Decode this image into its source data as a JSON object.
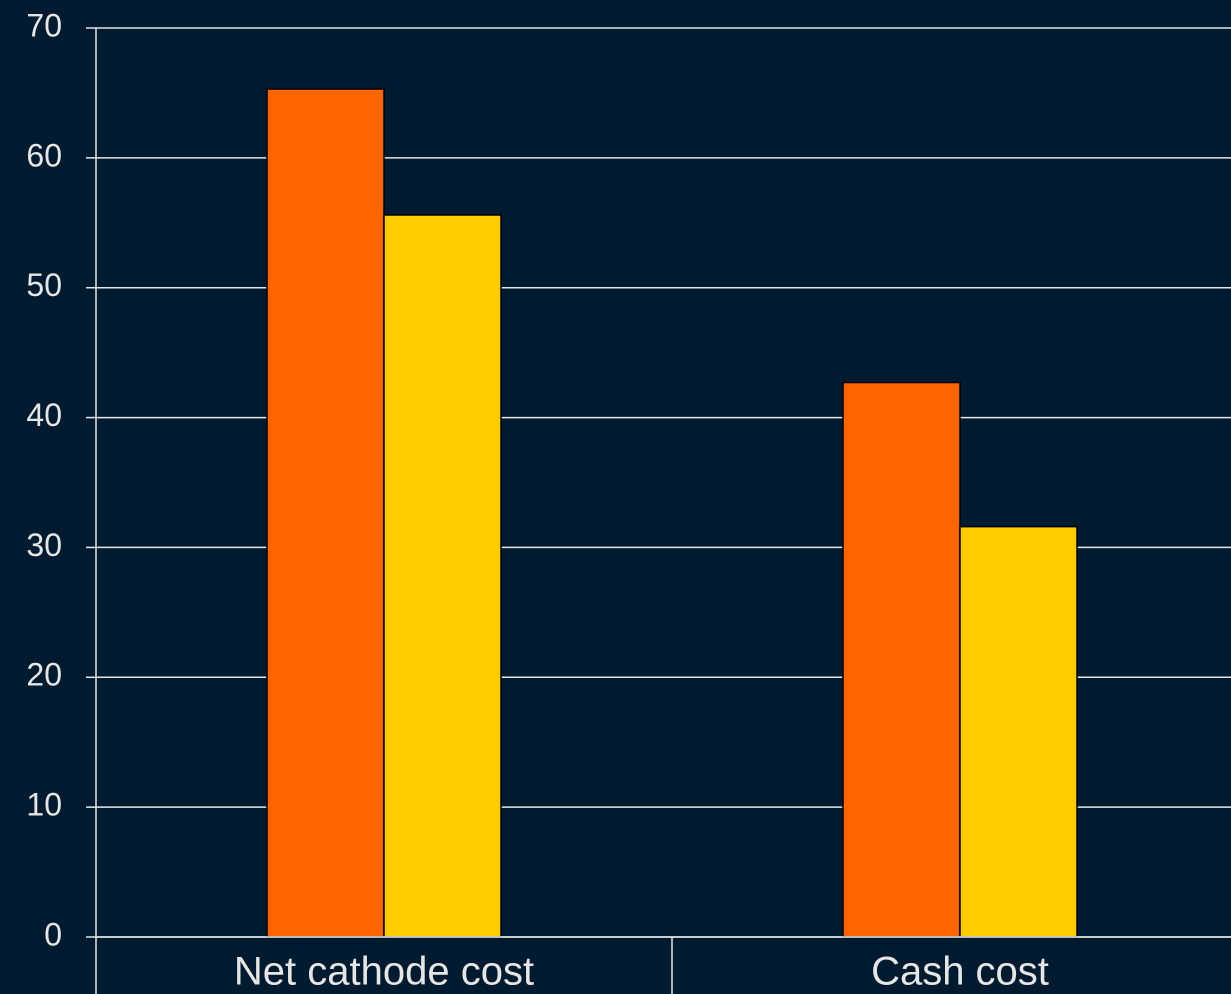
{
  "chart_data": {
    "type": "bar",
    "categories": [
      "Net cathode cost",
      "Cash cost"
    ],
    "series": [
      {
        "color": "#ff6600",
        "values": [
          65.3,
          42.7
        ]
      },
      {
        "color": "#ffcc00",
        "values": [
          55.6,
          31.6
        ]
      }
    ],
    "ylim": [
      0,
      70
    ],
    "yticks": [
      0,
      10,
      20,
      30,
      40,
      50,
      60,
      70
    ],
    "grid": true
  }
}
